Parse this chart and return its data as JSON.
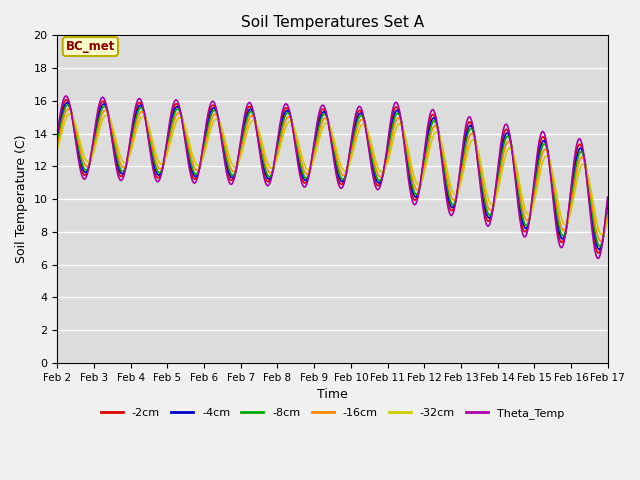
{
  "title": "Soil Temperatures Set A",
  "xlabel": "Time",
  "ylabel": "Soil Temperature (C)",
  "ylim": [
    0,
    20
  ],
  "yticks": [
    0,
    2,
    4,
    6,
    8,
    10,
    12,
    14,
    16,
    18,
    20
  ],
  "annotation_text": "BC_met",
  "annotation_bg": "#ffffcc",
  "annotation_border": "#bbaa00",
  "annotation_text_color": "#880000",
  "bg_color": "#dcdcdc",
  "fig_bg": "#f0f0f0",
  "lines": [
    {
      "label": "-2cm",
      "color": "#dd0000",
      "lw": 1.2
    },
    {
      "label": "-4cm",
      "color": "#0000cc",
      "lw": 1.2
    },
    {
      "label": "-8cm",
      "color": "#00aa00",
      "lw": 1.2
    },
    {
      "label": "-16cm",
      "color": "#ff8800",
      "lw": 1.2
    },
    {
      "label": "-32cm",
      "color": "#cccc00",
      "lw": 1.2
    },
    {
      "label": "Theta_Temp",
      "color": "#aa00aa",
      "lw": 1.2
    }
  ],
  "x_tick_labels": [
    "Feb 2",
    "Feb 3",
    "Feb 4",
    "Feb 5",
    "Feb 6",
    "Feb 7",
    "Feb 8",
    "Feb 9",
    "Feb 10",
    "Feb 11",
    "Feb 12",
    "Feb 13",
    "Feb 14",
    "Feb 15",
    "Feb 16",
    "Feb 17"
  ],
  "n_points": 721,
  "time_days": 15
}
